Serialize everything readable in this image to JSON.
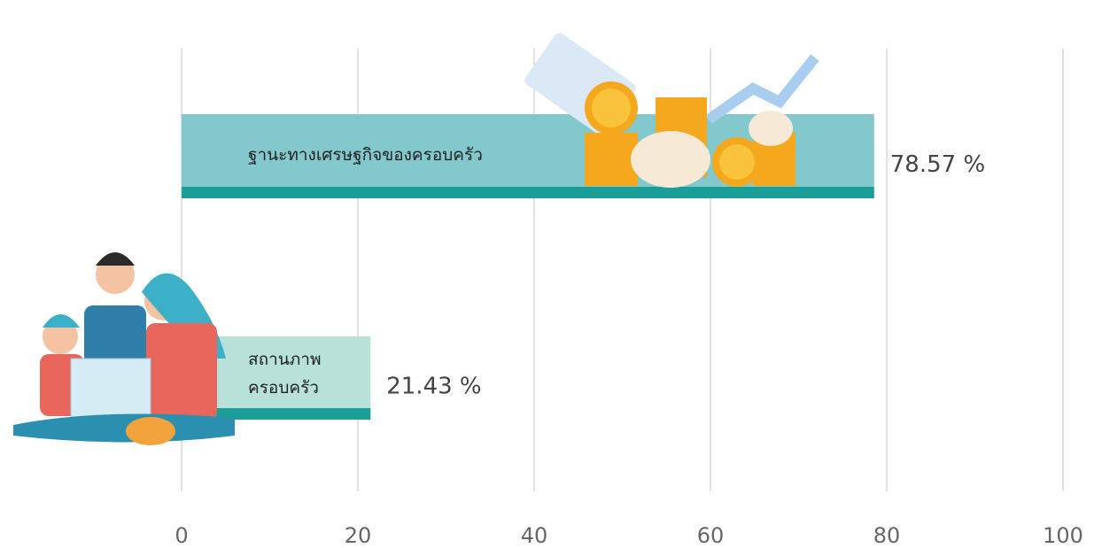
{
  "chart_data": {
    "type": "bar",
    "orientation": "horizontal",
    "categories": [
      "ฐานะทางเศรษฐกิจของครอบครัว",
      "สถานภาพครอบครัว"
    ],
    "values": [
      78.57,
      21.43
    ],
    "value_labels": [
      "78.57 %",
      "21.43 %"
    ],
    "colors": [
      "#82c8cc",
      "#b8e2d9"
    ],
    "accent_color": "#1a9e98",
    "xlim": [
      0,
      100
    ],
    "xticks": [
      0,
      20,
      40,
      60,
      80,
      100
    ],
    "grid": true
  }
}
